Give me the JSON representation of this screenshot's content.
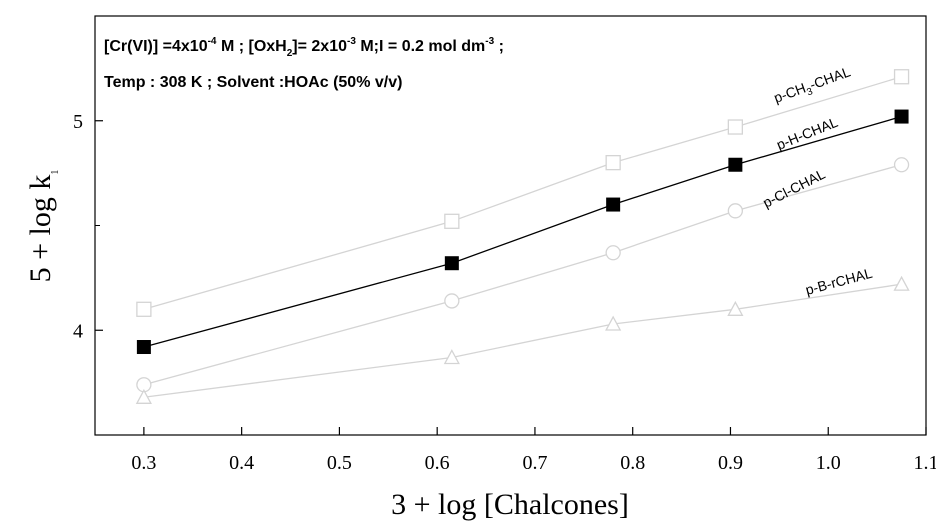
{
  "chart_data": {
    "type": "line",
    "x": [
      0.3,
      0.615,
      0.78,
      0.905,
      1.075
    ],
    "series": [
      {
        "name": "p-CH3-CHAL",
        "values": [
          4.1,
          4.52,
          4.8,
          4.97,
          5.21
        ],
        "marker": "open-square",
        "color": "#d4d4d4"
      },
      {
        "name": "p-H-CHAL",
        "values": [
          3.92,
          4.32,
          4.6,
          4.79,
          5.02
        ],
        "marker": "filled-square",
        "color": "#000000"
      },
      {
        "name": "p-Cl-CHAL",
        "values": [
          3.74,
          4.14,
          4.37,
          4.57,
          4.79
        ],
        "marker": "open-circle",
        "color": "#d4d4d4"
      },
      {
        "name": "p-Br-CHAL",
        "values": [
          3.68,
          3.87,
          4.03,
          4.1,
          4.22
        ],
        "marker": "open-triangle",
        "color": "#d4d4d4"
      }
    ],
    "xlim": [
      0.25,
      1.1
    ],
    "ylim": [
      3.5,
      5.5
    ],
    "xticks": [
      "0.3",
      "0.4",
      "0.5",
      "0.6",
      "0.7",
      "0.8",
      "0.9",
      "1.0",
      "1.1"
    ],
    "yticks": [
      "4",
      "5"
    ],
    "xlabel": "3 + log [Chalcones]",
    "ylabel": {
      "main": "5 + log k",
      "sub": "1"
    },
    "annotation": {
      "line1": {
        "a": "[Cr(VI)] =4x10",
        "a_sup": "-4",
        "b": " M ; [OxH",
        "b_sub": "2",
        "c": "]= 2x10",
        "c_sup": "-3",
        "d": " M;I = 0.2 mol dm",
        "d_sup": "-3",
        "e": " ;"
      },
      "line2": "Temp : 308 K ; Solvent :HOAc (50% v/v)"
    },
    "series_labels": [
      {
        "key": "ch3",
        "a": "p-CH",
        "sub": "3",
        "b": "-CHAL"
      },
      {
        "key": "h",
        "text": "p-H-CHAL"
      },
      {
        "key": "cl",
        "text": "p-Cl-CHAL"
      },
      {
        "key": "br",
        "text": "p-B-rCHAL"
      }
    ],
    "grid": false,
    "legend": "none"
  }
}
